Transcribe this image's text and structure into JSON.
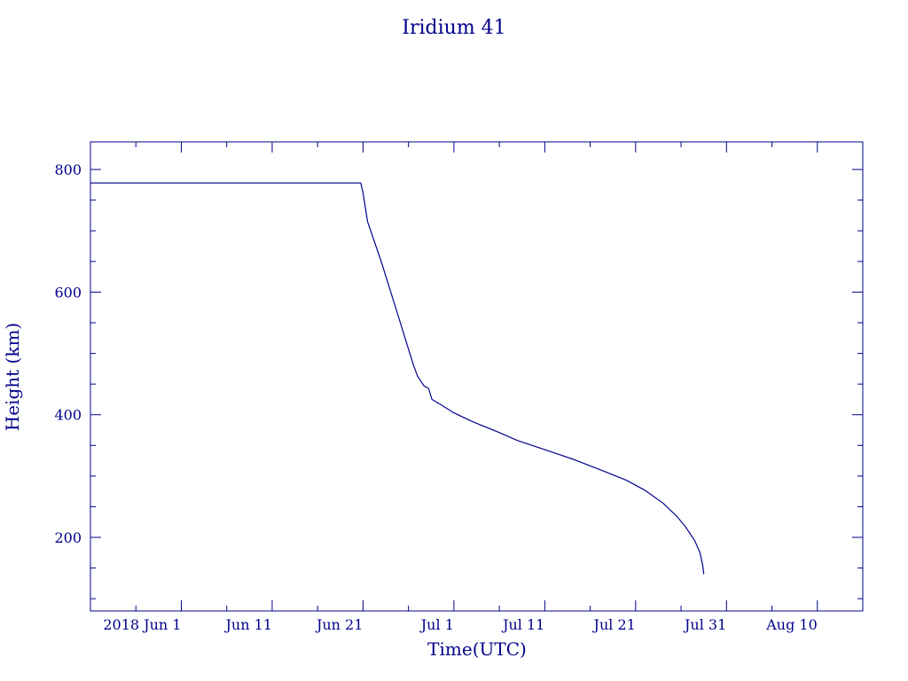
{
  "colors": {
    "ink": "#00008b",
    "background": "#ffffff"
  },
  "chart_data": {
    "type": "line",
    "title": "Iridium 41",
    "xlabel": "Time(UTC)",
    "ylabel": "Height (km)",
    "xlim": [
      "2018-05-22",
      "2018-08-15"
    ],
    "ylim": [
      80,
      845
    ],
    "grid": false,
    "x_ticks": [
      {
        "date": "2018-06-01",
        "label": "2018 Jun  1"
      },
      {
        "date": "2018-06-11",
        "label": "Jun 11"
      },
      {
        "date": "2018-06-21",
        "label": "Jun 21"
      },
      {
        "date": "2018-07-01",
        "label": "Jul  1"
      },
      {
        "date": "2018-07-11",
        "label": "Jul 11"
      },
      {
        "date": "2018-07-21",
        "label": "Jul 21"
      },
      {
        "date": "2018-07-31",
        "label": "Jul 31"
      },
      {
        "date": "2018-08-10",
        "label": "Aug 10"
      }
    ],
    "x_minor_ticks": [
      "2018-05-27",
      "2018-06-06",
      "2018-06-16",
      "2018-06-26",
      "2018-07-06",
      "2018-07-16",
      "2018-07-26",
      "2018-08-05"
    ],
    "y_ticks": [
      200,
      400,
      600,
      800
    ],
    "y_minor_ticks": [
      100,
      150,
      250,
      300,
      350,
      450,
      500,
      550,
      650,
      700,
      750
    ],
    "series": [
      {
        "points": [
          {
            "x": "2018-05-22",
            "y": 778
          },
          {
            "x": "2018-06-20T18:00",
            "y": 778
          },
          {
            "x": "2018-06-21",
            "y": 762
          },
          {
            "x": "2018-06-21T12:00",
            "y": 715
          },
          {
            "x": "2018-06-23",
            "y": 650
          },
          {
            "x": "2018-06-25",
            "y": 555
          },
          {
            "x": "2018-06-26T12:00",
            "y": 483
          },
          {
            "x": "2018-06-27",
            "y": 463
          },
          {
            "x": "2018-06-27T17:00",
            "y": 447
          },
          {
            "x": "2018-06-28T05:00",
            "y": 443
          },
          {
            "x": "2018-06-28T14:00",
            "y": 425
          },
          {
            "x": "2018-06-29T12:00",
            "y": 417
          },
          {
            "x": "2018-07-01",
            "y": 403
          },
          {
            "x": "2018-07-03",
            "y": 389
          },
          {
            "x": "2018-07-06",
            "y": 371
          },
          {
            "x": "2018-07-08",
            "y": 358
          },
          {
            "x": "2018-07-11",
            "y": 343
          },
          {
            "x": "2018-07-14",
            "y": 328
          },
          {
            "x": "2018-07-17",
            "y": 311
          },
          {
            "x": "2018-07-20",
            "y": 293
          },
          {
            "x": "2018-07-22",
            "y": 277
          },
          {
            "x": "2018-07-24",
            "y": 256
          },
          {
            "x": "2018-07-25T12:00",
            "y": 235
          },
          {
            "x": "2018-07-26T12:00",
            "y": 217
          },
          {
            "x": "2018-07-27T12:00",
            "y": 195
          },
          {
            "x": "2018-07-28T02:00",
            "y": 175
          },
          {
            "x": "2018-07-28T09:00",
            "y": 155
          },
          {
            "x": "2018-07-28T12:00",
            "y": 140
          }
        ]
      }
    ]
  }
}
